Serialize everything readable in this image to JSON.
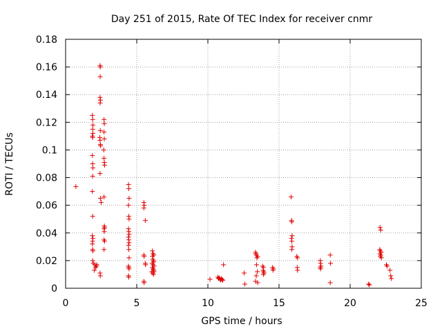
{
  "chart_data": {
    "type": "scatter",
    "title": "Day 251 of 2015, Rate Of TEC Index for receiver cnmr",
    "xlabel": "GPS time / hours",
    "ylabel": "ROTI / TECUs",
    "xlim": [
      0,
      25
    ],
    "ylim": [
      0,
      0.18
    ],
    "xticks": [
      0,
      5,
      10,
      15,
      20,
      25
    ],
    "yticks": [
      0,
      0.02,
      0.04,
      0.06,
      0.08,
      0.1,
      0.12,
      0.14,
      0.16,
      0.18
    ],
    "xtick_labels": [
      "0",
      "5",
      "10",
      "15",
      "20",
      "25"
    ],
    "ytick_labels": [
      "0",
      "0.02",
      "0.04",
      "0.06",
      "0.08",
      "0.1",
      "0.12",
      "0.14",
      "0.16",
      "0.18"
    ],
    "grid": true,
    "marker": "+",
    "marker_color": "#e00000",
    "series": [
      {
        "name": "ROTI",
        "points": [
          [
            0.72,
            0.0735
          ],
          [
            1.88,
            0.125
          ],
          [
            1.9,
            0.122
          ],
          [
            1.92,
            0.118
          ],
          [
            1.9,
            0.115
          ],
          [
            1.92,
            0.112
          ],
          [
            1.88,
            0.11
          ],
          [
            1.9,
            0.109
          ],
          [
            1.88,
            0.096
          ],
          [
            1.9,
            0.09
          ],
          [
            1.92,
            0.087
          ],
          [
            1.9,
            0.081
          ],
          [
            1.88,
            0.07
          ],
          [
            1.9,
            0.052
          ],
          [
            1.88,
            0.038
          ],
          [
            1.92,
            0.036
          ],
          [
            1.9,
            0.034
          ],
          [
            1.88,
            0.032
          ],
          [
            1.9,
            0.028
          ],
          [
            1.92,
            0.027
          ],
          [
            1.9,
            0.02
          ],
          [
            1.95,
            0.018
          ],
          [
            2.05,
            0.017
          ],
          [
            2.1,
            0.015
          ],
          [
            2.15,
            0.016
          ],
          [
            2.02,
            0.013
          ],
          [
            2.2,
            0.017
          ],
          [
            2.42,
            0.161
          ],
          [
            2.44,
            0.16
          ],
          [
            2.43,
            0.153
          ],
          [
            2.42,
            0.138
          ],
          [
            2.45,
            0.136
          ],
          [
            2.43,
            0.134
          ],
          [
            2.44,
            0.114
          ],
          [
            2.4,
            0.109
          ],
          [
            2.42,
            0.107
          ],
          [
            2.44,
            0.104
          ],
          [
            2.46,
            0.103
          ],
          [
            2.42,
            0.083
          ],
          [
            2.45,
            0.065
          ],
          [
            2.5,
            0.062
          ],
          [
            2.42,
            0.011
          ],
          [
            2.44,
            0.009
          ],
          [
            2.7,
            0.122
          ],
          [
            2.72,
            0.119
          ],
          [
            2.7,
            0.113
          ],
          [
            2.72,
            0.108
          ],
          [
            2.68,
            0.1
          ],
          [
            2.7,
            0.094
          ],
          [
            2.72,
            0.091
          ],
          [
            2.74,
            0.089
          ],
          [
            2.7,
            0.066
          ],
          [
            2.72,
            0.045
          ],
          [
            2.74,
            0.044
          ],
          [
            2.7,
            0.043
          ],
          [
            2.72,
            0.041
          ],
          [
            2.7,
            0.035
          ],
          [
            2.74,
            0.034
          ],
          [
            2.7,
            0.028
          ],
          [
            4.42,
            0.075
          ],
          [
            4.44,
            0.072
          ],
          [
            4.46,
            0.065
          ],
          [
            4.42,
            0.06
          ],
          [
            4.44,
            0.052
          ],
          [
            4.46,
            0.05
          ],
          [
            4.42,
            0.043
          ],
          [
            4.44,
            0.041
          ],
          [
            4.46,
            0.039
          ],
          [
            4.42,
            0.037
          ],
          [
            4.44,
            0.035
          ],
          [
            4.46,
            0.033
          ],
          [
            4.42,
            0.031
          ],
          [
            4.44,
            0.028
          ],
          [
            4.46,
            0.022
          ],
          [
            4.42,
            0.016
          ],
          [
            4.44,
            0.015
          ],
          [
            4.46,
            0.014
          ],
          [
            4.42,
            0.009
          ],
          [
            4.44,
            0.008
          ],
          [
            5.5,
            0.062
          ],
          [
            5.52,
            0.06
          ],
          [
            5.5,
            0.058
          ],
          [
            5.6,
            0.049
          ],
          [
            5.5,
            0.024
          ],
          [
            5.52,
            0.023
          ],
          [
            5.6,
            0.018
          ],
          [
            5.62,
            0.017
          ],
          [
            5.5,
            0.005
          ],
          [
            5.52,
            0.004
          ],
          [
            6.1,
            0.027
          ],
          [
            6.15,
            0.025
          ],
          [
            6.2,
            0.024
          ],
          [
            6.1,
            0.023
          ],
          [
            6.12,
            0.021
          ],
          [
            6.18,
            0.02
          ],
          [
            6.2,
            0.019
          ],
          [
            6.08,
            0.018
          ],
          [
            6.15,
            0.017
          ],
          [
            6.22,
            0.016
          ],
          [
            6.1,
            0.015
          ],
          [
            6.15,
            0.014
          ],
          [
            6.2,
            0.013
          ],
          [
            6.05,
            0.012
          ],
          [
            6.12,
            0.011
          ],
          [
            6.18,
            0.01
          ],
          [
            6.22,
            0.012
          ],
          [
            10.15,
            0.0065
          ],
          [
            10.7,
            0.008
          ],
          [
            10.75,
            0.007
          ],
          [
            10.8,
            0.0075
          ],
          [
            10.85,
            0.0065
          ],
          [
            10.9,
            0.006
          ],
          [
            10.95,
            0.007
          ],
          [
            11.0,
            0.0062
          ],
          [
            11.05,
            0.0058
          ],
          [
            11.1,
            0.017
          ],
          [
            12.55,
            0.011
          ],
          [
            12.6,
            0.003
          ],
          [
            13.35,
            0.026
          ],
          [
            13.38,
            0.025
          ],
          [
            13.4,
            0.024
          ],
          [
            13.45,
            0.022
          ],
          [
            13.5,
            0.023
          ],
          [
            13.42,
            0.017
          ],
          [
            13.48,
            0.012
          ],
          [
            13.4,
            0.009
          ],
          [
            13.35,
            0.005
          ],
          [
            13.5,
            0.004
          ],
          [
            13.85,
            0.016
          ],
          [
            13.9,
            0.015
          ],
          [
            13.88,
            0.013
          ],
          [
            13.92,
            0.012
          ],
          [
            13.95,
            0.011
          ],
          [
            13.9,
            0.01
          ],
          [
            14.55,
            0.015
          ],
          [
            14.6,
            0.014
          ],
          [
            14.58,
            0.013
          ],
          [
            15.85,
            0.066
          ],
          [
            15.88,
            0.049
          ],
          [
            15.9,
            0.048
          ],
          [
            15.92,
            0.038
          ],
          [
            15.88,
            0.036
          ],
          [
            15.9,
            0.034
          ],
          [
            15.92,
            0.03
          ],
          [
            15.9,
            0.028
          ],
          [
            16.25,
            0.023
          ],
          [
            16.3,
            0.022
          ],
          [
            16.28,
            0.015
          ],
          [
            16.3,
            0.013
          ],
          [
            17.9,
            0.02
          ],
          [
            17.92,
            0.018
          ],
          [
            17.95,
            0.016
          ],
          [
            17.9,
            0.015
          ],
          [
            17.92,
            0.014
          ],
          [
            18.6,
            0.024
          ],
          [
            18.62,
            0.018
          ],
          [
            18.6,
            0.004
          ],
          [
            21.3,
            0.003
          ],
          [
            21.35,
            0.0025
          ],
          [
            22.1,
            0.044
          ],
          [
            22.15,
            0.042
          ],
          [
            22.08,
            0.028
          ],
          [
            22.12,
            0.027
          ],
          [
            22.18,
            0.026
          ],
          [
            22.1,
            0.025
          ],
          [
            22.15,
            0.024
          ],
          [
            22.12,
            0.023
          ],
          [
            22.2,
            0.022
          ],
          [
            22.55,
            0.017
          ],
          [
            22.6,
            0.016
          ],
          [
            22.8,
            0.013
          ],
          [
            22.85,
            0.009
          ],
          [
            22.9,
            0.007
          ]
        ]
      }
    ]
  }
}
